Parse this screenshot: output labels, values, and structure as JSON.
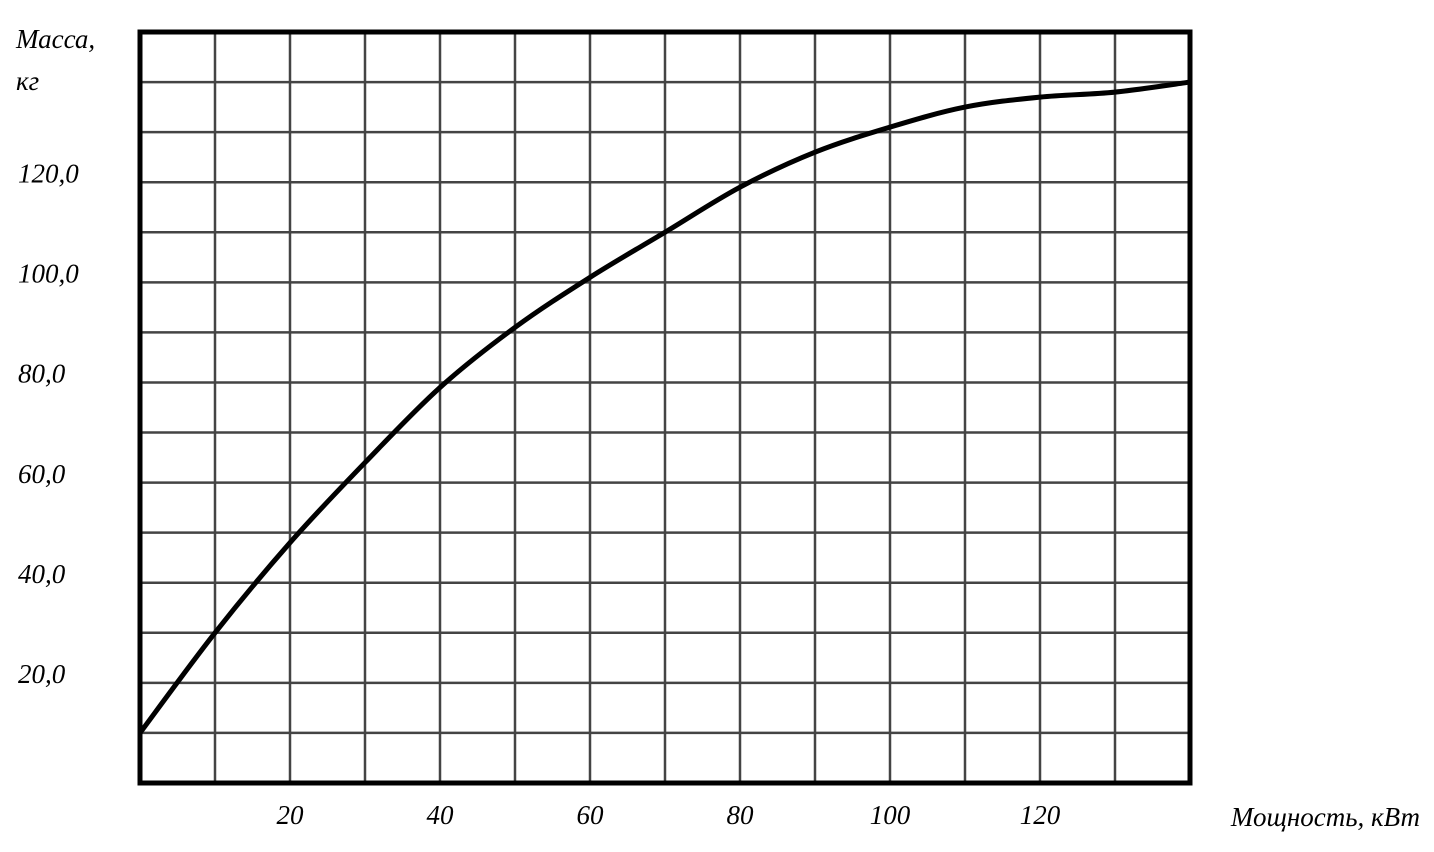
{
  "chart_data": {
    "type": "line",
    "ylabel": [
      "Масса,",
      "кг"
    ],
    "xlabel": "Мощность, кВт",
    "x": [
      0,
      10,
      20,
      30,
      40,
      50,
      60,
      70,
      80,
      90,
      100,
      110,
      120,
      130,
      140
    ],
    "series": [
      {
        "color": "#000000",
        "values": [
          10,
          30,
          48,
          64,
          79,
          91,
          101,
          110,
          119,
          126,
          131,
          135,
          137,
          138,
          140
        ]
      }
    ],
    "xlim": [
      0,
      140
    ],
    "ylim": [
      0,
      150
    ],
    "xticks": [
      20,
      40,
      60,
      80,
      100,
      120
    ],
    "yticks": [
      {
        "value": 20,
        "label": "20,0"
      },
      {
        "value": 40,
        "label": "40,0"
      },
      {
        "value": 60,
        "label": "60,0"
      },
      {
        "value": 80,
        "label": "80,0"
      },
      {
        "value": 100,
        "label": "100,0"
      },
      {
        "value": 120,
        "label": "120,0"
      }
    ],
    "xminorticks": [
      10,
      30,
      50,
      70,
      90,
      110,
      130
    ],
    "yminorticks": [
      10,
      30,
      50,
      70,
      90,
      110,
      130,
      140
    ],
    "grid": true
  }
}
